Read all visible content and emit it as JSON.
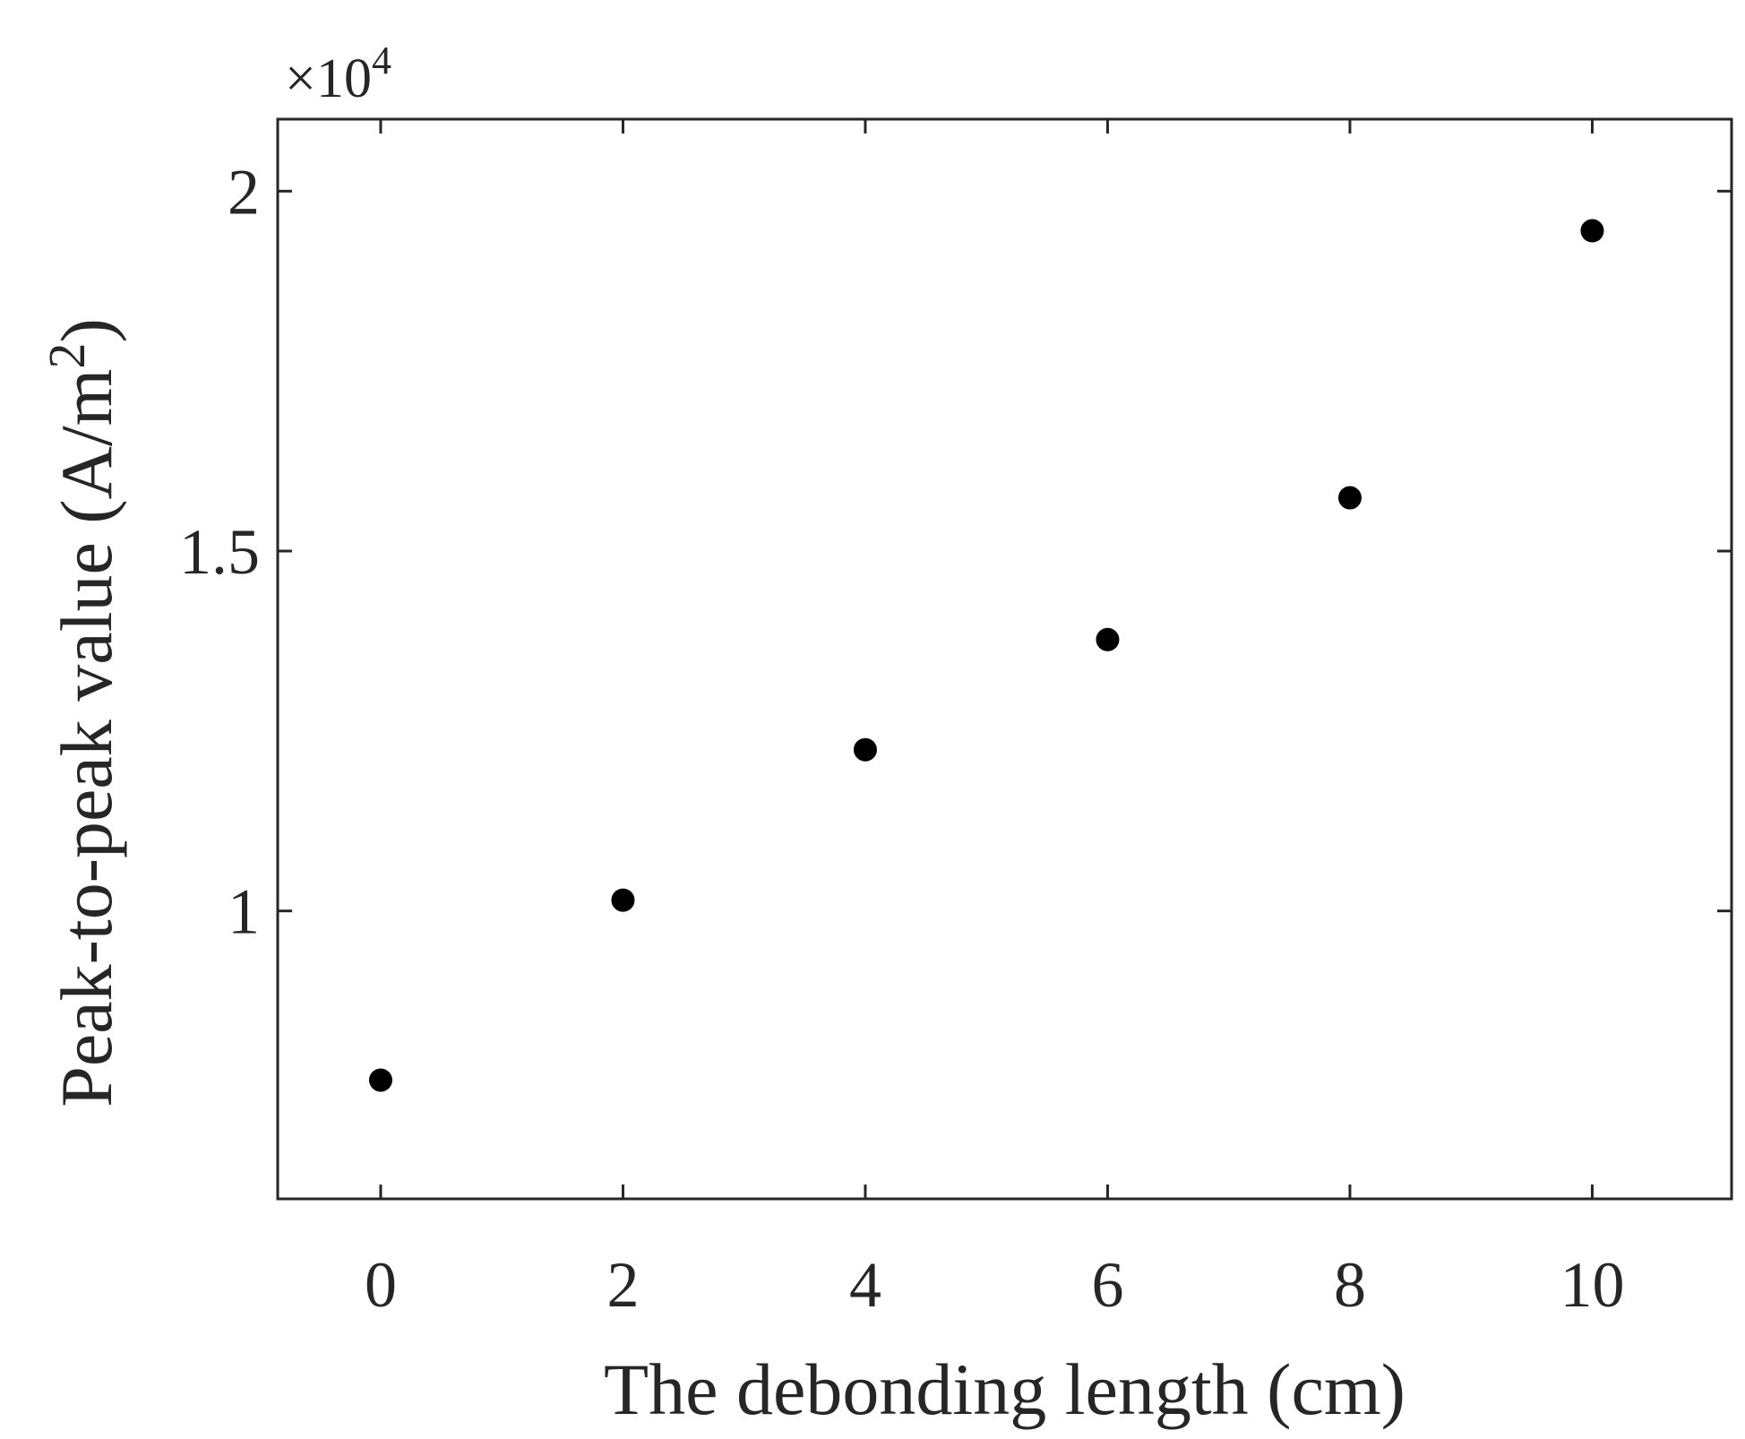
{
  "chart_data": {
    "type": "scatter",
    "title": "",
    "xlabel": "The debonding length (cm)",
    "ylabel_main": "Peak-to-peak value (A/m",
    "ylabel_sup": "2",
    "ylabel_close": ")",
    "y_exponent_prefix": "×10",
    "y_exponent_power": "4",
    "xlim": [
      -0.85,
      11.15
    ],
    "ylim": [
      0.6,
      2.1
    ],
    "y_multiplier": 10000,
    "x_ticks": [
      0,
      2,
      4,
      6,
      8,
      10
    ],
    "x_tick_labels": [
      "0",
      "2",
      "4",
      "6",
      "8",
      "10"
    ],
    "y_ticks": [
      1,
      1.5,
      2
    ],
    "y_tick_labels": [
      "1",
      "1.5",
      "2"
    ],
    "grid": false,
    "marker_color": "#000000",
    "series": [
      {
        "x": [
          0,
          2,
          4,
          6,
          8,
          10
        ],
        "y": [
          0.765,
          1.015,
          1.224,
          1.377,
          1.574,
          1.945
        ]
      }
    ]
  }
}
